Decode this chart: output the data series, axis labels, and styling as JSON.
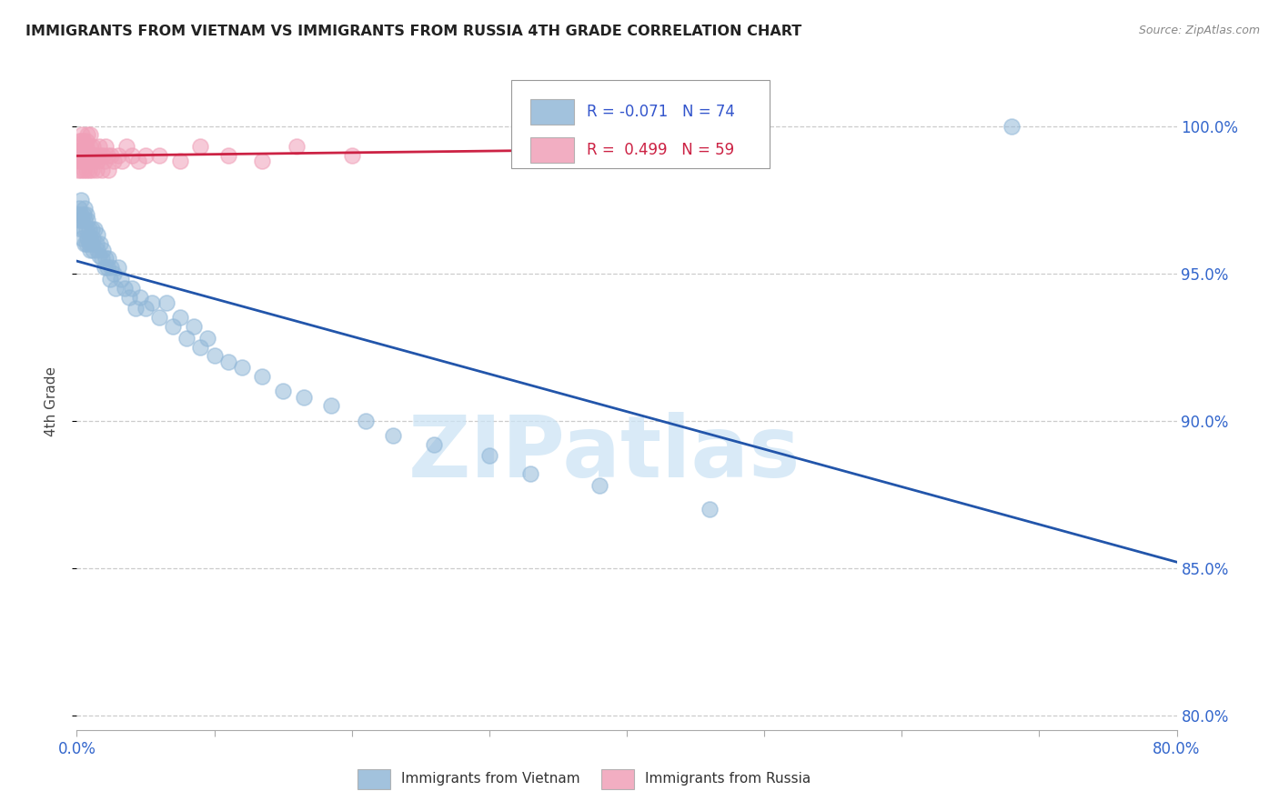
{
  "title": "IMMIGRANTS FROM VIETNAM VS IMMIGRANTS FROM RUSSIA 4TH GRADE CORRELATION CHART",
  "source": "Source: ZipAtlas.com",
  "ylabel": "4th Grade",
  "ytick_values": [
    0.8,
    0.85,
    0.9,
    0.95,
    1.0
  ],
  "xlim": [
    0.0,
    0.8
  ],
  "ylim": [
    0.795,
    1.018
  ],
  "watermark": "ZIPatlas",
  "blue_color": "#92b8d8",
  "pink_color": "#f0a0b8",
  "blue_line_color": "#2255aa",
  "pink_line_color": "#cc2244",
  "vietnam_x": [
    0.001,
    0.002,
    0.002,
    0.003,
    0.003,
    0.003,
    0.004,
    0.004,
    0.005,
    0.005,
    0.006,
    0.006,
    0.006,
    0.007,
    0.007,
    0.007,
    0.008,
    0.008,
    0.009,
    0.009,
    0.01,
    0.01,
    0.011,
    0.011,
    0.012,
    0.012,
    0.013,
    0.014,
    0.015,
    0.015,
    0.016,
    0.017,
    0.018,
    0.019,
    0.02,
    0.021,
    0.022,
    0.023,
    0.024,
    0.025,
    0.027,
    0.028,
    0.03,
    0.032,
    0.035,
    0.038,
    0.04,
    0.043,
    0.046,
    0.05,
    0.055,
    0.06,
    0.065,
    0.07,
    0.075,
    0.08,
    0.085,
    0.09,
    0.095,
    0.1,
    0.11,
    0.12,
    0.135,
    0.15,
    0.165,
    0.185,
    0.21,
    0.23,
    0.26,
    0.3,
    0.33,
    0.38,
    0.46,
    0.68
  ],
  "vietnam_y": [
    0.97,
    0.968,
    0.972,
    0.965,
    0.97,
    0.975,
    0.968,
    0.962,
    0.965,
    0.97,
    0.96,
    0.968,
    0.972,
    0.96,
    0.965,
    0.97,
    0.962,
    0.968,
    0.96,
    0.965,
    0.958,
    0.962,
    0.965,
    0.96,
    0.958,
    0.962,
    0.965,
    0.96,
    0.958,
    0.963,
    0.956,
    0.96,
    0.955,
    0.958,
    0.952,
    0.955,
    0.952,
    0.955,
    0.948,
    0.952,
    0.95,
    0.945,
    0.952,
    0.948,
    0.945,
    0.942,
    0.945,
    0.938,
    0.942,
    0.938,
    0.94,
    0.935,
    0.94,
    0.932,
    0.935,
    0.928,
    0.932,
    0.925,
    0.928,
    0.922,
    0.92,
    0.918,
    0.915,
    0.91,
    0.908,
    0.905,
    0.9,
    0.895,
    0.892,
    0.888,
    0.882,
    0.878,
    0.87,
    1.0
  ],
  "russia_x": [
    0.001,
    0.001,
    0.002,
    0.002,
    0.002,
    0.003,
    0.003,
    0.003,
    0.004,
    0.004,
    0.004,
    0.005,
    0.005,
    0.005,
    0.006,
    0.006,
    0.007,
    0.007,
    0.007,
    0.008,
    0.008,
    0.008,
    0.009,
    0.009,
    0.01,
    0.01,
    0.01,
    0.011,
    0.011,
    0.012,
    0.012,
    0.013,
    0.014,
    0.014,
    0.015,
    0.016,
    0.017,
    0.018,
    0.019,
    0.02,
    0.021,
    0.022,
    0.023,
    0.025,
    0.027,
    0.03,
    0.033,
    0.036,
    0.04,
    0.045,
    0.05,
    0.06,
    0.075,
    0.09,
    0.11,
    0.135,
    0.16,
    0.2,
    0.34
  ],
  "russia_y": [
    0.985,
    0.99,
    0.988,
    0.992,
    0.995,
    0.985,
    0.99,
    0.995,
    0.988,
    0.992,
    0.997,
    0.985,
    0.99,
    0.995,
    0.988,
    0.992,
    0.985,
    0.99,
    0.995,
    0.988,
    0.992,
    0.997,
    0.985,
    0.99,
    0.988,
    0.993,
    0.997,
    0.985,
    0.99,
    0.988,
    0.993,
    0.99,
    0.985,
    0.99,
    0.988,
    0.993,
    0.99,
    0.985,
    0.99,
    0.988,
    0.993,
    0.99,
    0.985,
    0.99,
    0.988,
    0.99,
    0.988,
    0.993,
    0.99,
    0.988,
    0.99,
    0.99,
    0.988,
    0.993,
    0.99,
    0.988,
    0.993,
    0.99,
    0.993
  ]
}
